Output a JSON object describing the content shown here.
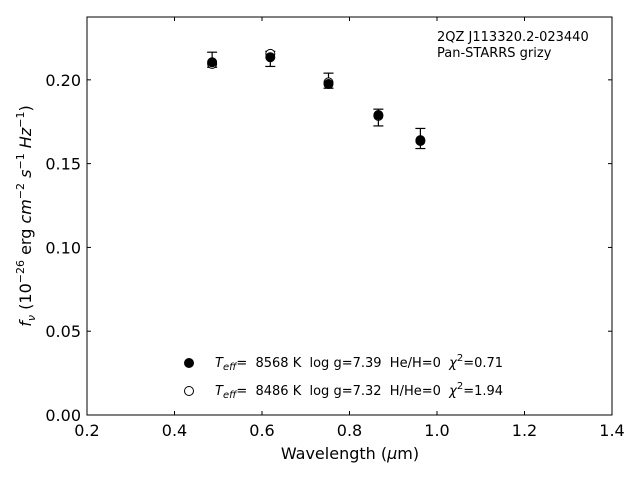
{
  "chart_data": {
    "type": "scatter",
    "title": "",
    "annotation_lines": [
      "2QZ J113320.2-023440",
      "Pan-STARRS grizy"
    ],
    "xlabel": "Wavelength (μm)",
    "ylabel": "f_ν (10^-26 erg cm^-2 s^-1 Hz^-1)",
    "xlim": [
      0.2,
      1.4
    ],
    "ylim": [
      0.0,
      0.2375
    ],
    "x_ticks": [
      0.2,
      0.4,
      0.6,
      0.8,
      1.0,
      1.2,
      1.4
    ],
    "x_tick_labels": [
      "0.2",
      "0.4",
      "0.6",
      "0.8",
      "1.0",
      "1.2",
      "1.4"
    ],
    "y_ticks": [
      0.0,
      0.05,
      0.1,
      0.15,
      0.2
    ],
    "y_tick_labels": [
      "0.00",
      "0.05",
      "0.10",
      "0.15",
      "0.20"
    ],
    "grid": false,
    "legend_position": "bottom-center",
    "observed": {
      "x": [
        0.486,
        0.619,
        0.752,
        0.866,
        0.962
      ],
      "y": [
        0.212,
        0.2125,
        0.1995,
        0.1775,
        0.165
      ],
      "yerr": [
        0.0045,
        0.0045,
        0.0045,
        0.005,
        0.006
      ]
    },
    "series": [
      {
        "name": "Teff= 8568 K log g=7.39 He/H=0 χ2=0.71",
        "marker": "filled-circle",
        "legend_parts": {
          "teff_value": "=  8568 K  log g=7.39  He/H=0  ",
          "chi_value": "=0.71"
        },
        "x": [
          0.486,
          0.619,
          0.752,
          0.866,
          0.962
        ],
        "y": [
          0.2105,
          0.2135,
          0.1975,
          0.179,
          0.164
        ]
      },
      {
        "name": "Teff= 8486 K log g=7.32 H/He=0 χ2=1.94",
        "marker": "open-circle",
        "legend_parts": {
          "teff_value": "=  8486 K  log g=7.32  H/He=0  ",
          "chi_value": "=1.94"
        },
        "x": [
          0.486,
          0.619,
          0.752,
          0.866,
          0.962
        ],
        "y": [
          0.2095,
          0.2155,
          0.1985,
          0.1785,
          0.1635
        ]
      }
    ],
    "colors": {
      "marker": "#000000",
      "axes": "#000000",
      "background": "#ffffff"
    }
  }
}
